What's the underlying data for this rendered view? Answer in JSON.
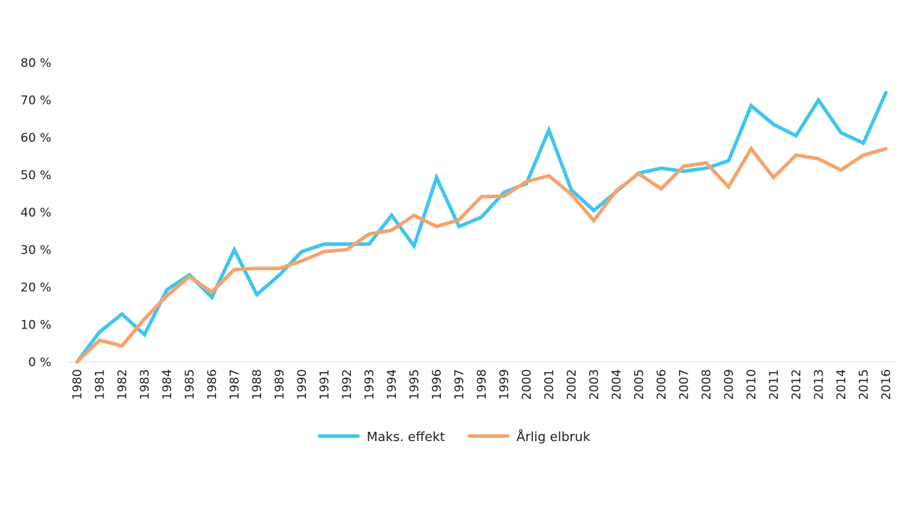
{
  "chart_data": {
    "type": "line",
    "title": "",
    "xlabel": "",
    "ylabel": "",
    "ylim": [
      0,
      80
    ],
    "yticks": [
      "0 %",
      "10 %",
      "20 %",
      "30 %",
      "40 %",
      "50 %",
      "60 %",
      "70 %",
      "80 %"
    ],
    "grid": false,
    "legend_position": "bottom-center",
    "categories": [
      "1980",
      "1981",
      "1982",
      "1983",
      "1984",
      "1985",
      "1986",
      "1987",
      "1988",
      "1989",
      "1990",
      "1991",
      "1992",
      "1993",
      "1994",
      "1995",
      "1996",
      "1997",
      "1998",
      "1999",
      "2000",
      "2001",
      "2002",
      "2003",
      "2004",
      "2005",
      "2006",
      "2007",
      "2008",
      "2009",
      "2010",
      "2011",
      "2012",
      "2013",
      "2014",
      "2015",
      "2016"
    ],
    "series": [
      {
        "name": "Maks. effekt",
        "color": "#3EC6EE",
        "values": [
          0,
          8,
          12.8,
          7.3,
          19.3,
          23.3,
          17.3,
          30,
          18,
          23.2,
          29.5,
          31.5,
          31.5,
          31.5,
          39.2,
          31,
          49.3,
          36.2,
          38.7,
          45.3,
          47.7,
          62,
          46,
          40.5,
          45.5,
          50.5,
          51.8,
          51,
          51.8,
          53.8,
          68.5,
          63.5,
          60.5,
          70,
          61.3,
          58.5,
          72
        ]
      },
      {
        "name": "Årlig elbruk",
        "color": "#F4A46C",
        "values": [
          0,
          5.8,
          4.3,
          11.5,
          17.7,
          22.8,
          18.7,
          24.7,
          25,
          25,
          27,
          29.5,
          30,
          34.2,
          35.2,
          39.2,
          36.2,
          38,
          44.2,
          44.3,
          48.2,
          49.8,
          44.8,
          37.8,
          45.8,
          50.3,
          46.3,
          52.3,
          53.2,
          46.8,
          57,
          49.3,
          55.3,
          54.3,
          51.3,
          55.3,
          57
        ]
      }
    ]
  }
}
